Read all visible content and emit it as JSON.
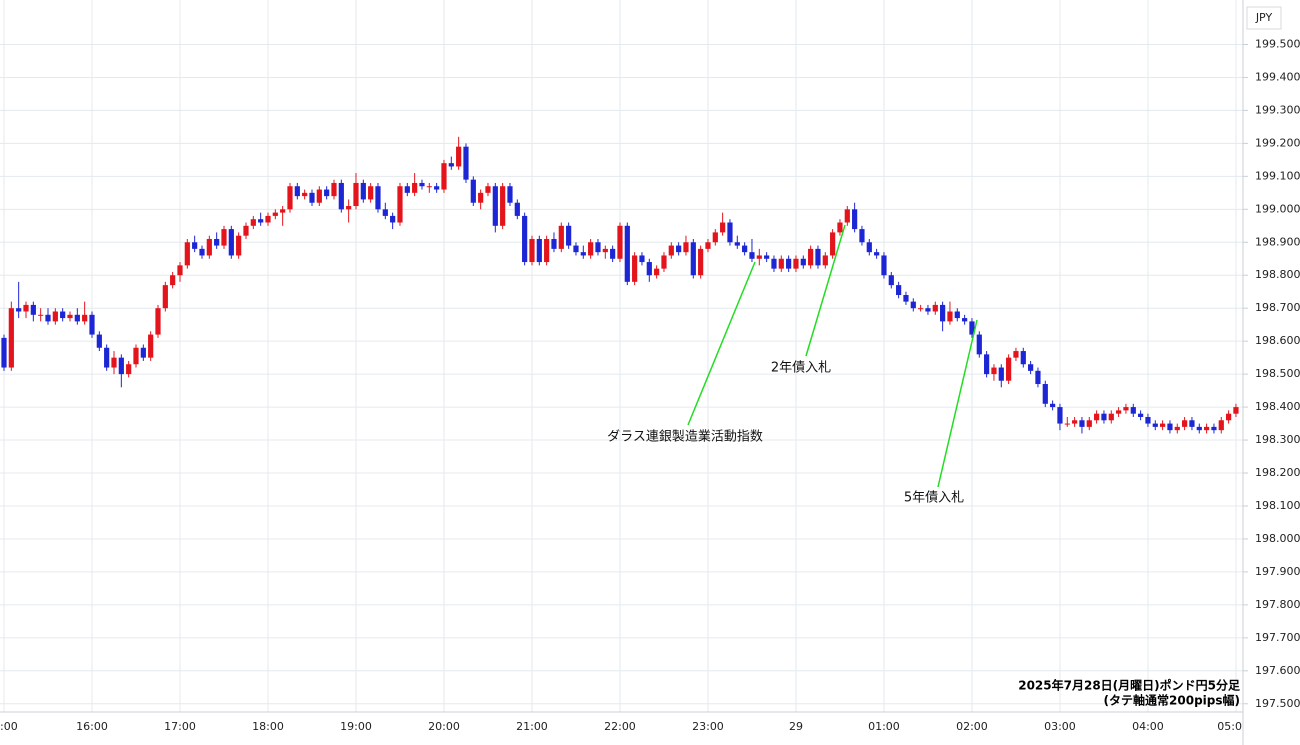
{
  "chart_data": {
    "type": "candlestick",
    "currency_label": "JPY",
    "up_color": "#e3141c",
    "down_color": "#1c26d4",
    "grid": true,
    "ylim": [
      197.475,
      199.635
    ],
    "yticks": [
      {
        "value": 197.5,
        "label": "197.500"
      },
      {
        "value": 197.6,
        "label": "197.600"
      },
      {
        "value": 197.7,
        "label": "197.700"
      },
      {
        "value": 197.8,
        "label": "197.800"
      },
      {
        "value": 197.9,
        "label": "197.900"
      },
      {
        "value": 198.0,
        "label": "198.000"
      },
      {
        "value": 198.1,
        "label": "198.100"
      },
      {
        "value": 198.2,
        "label": "198.200"
      },
      {
        "value": 198.3,
        "label": "198.300"
      },
      {
        "value": 198.4,
        "label": "198.400"
      },
      {
        "value": 198.5,
        "label": "198.500"
      },
      {
        "value": 198.6,
        "label": "198.600"
      },
      {
        "value": 198.7,
        "label": "198.700"
      },
      {
        "value": 198.8,
        "label": "198.800"
      },
      {
        "value": 198.9,
        "label": "198.900"
      },
      {
        "value": 199.0,
        "label": "199.000"
      },
      {
        "value": 199.1,
        "label": "199.100"
      },
      {
        "value": 199.2,
        "label": "199.200"
      },
      {
        "value": 199.3,
        "label": "199.300"
      },
      {
        "value": 199.4,
        "label": "199.400"
      },
      {
        "value": 199.5,
        "label": "199.500"
      }
    ],
    "categories": [
      ":00",
      null,
      null,
      null,
      null,
      null,
      null,
      null,
      null,
      null,
      null,
      null,
      "16:00",
      null,
      null,
      null,
      null,
      null,
      null,
      null,
      null,
      null,
      null,
      null,
      "17:00",
      null,
      null,
      null,
      null,
      null,
      null,
      null,
      null,
      null,
      null,
      null,
      "18:00",
      null,
      null,
      null,
      null,
      null,
      null,
      null,
      null,
      null,
      null,
      null,
      "19:00",
      null,
      null,
      null,
      null,
      null,
      null,
      null,
      null,
      null,
      null,
      null,
      "20:00",
      null,
      null,
      null,
      null,
      null,
      null,
      null,
      null,
      null,
      null,
      null,
      "21:00",
      null,
      null,
      null,
      null,
      null,
      null,
      null,
      null,
      null,
      null,
      null,
      "22:00",
      null,
      null,
      null,
      null,
      null,
      null,
      null,
      null,
      null,
      null,
      null,
      "23:00",
      null,
      null,
      null,
      null,
      null,
      null,
      null,
      null,
      null,
      null,
      null,
      "29",
      null,
      null,
      null,
      null,
      null,
      null,
      null,
      null,
      null,
      null,
      null,
      "01:00",
      null,
      null,
      null,
      null,
      null,
      null,
      null,
      null,
      null,
      null,
      null,
      "02:00",
      null,
      null,
      null,
      null,
      null,
      null,
      null,
      null,
      null,
      null,
      null,
      "03:00",
      null,
      null,
      null,
      null,
      null,
      null,
      null,
      null,
      null,
      null,
      null,
      "04:00",
      null,
      null,
      null,
      null,
      null,
      null,
      null,
      null,
      null,
      null,
      null,
      "05:0"
    ],
    "values": [
      [
        198.61,
        198.62,
        198.51,
        198.52
      ],
      [
        198.52,
        198.72,
        198.51,
        198.7
      ],
      [
        198.7,
        198.78,
        198.67,
        198.69
      ],
      [
        198.69,
        198.72,
        198.67,
        198.71
      ],
      [
        198.71,
        198.72,
        198.66,
        198.68
      ],
      [
        198.68,
        198.7,
        198.66,
        198.68
      ],
      [
        198.68,
        198.7,
        198.65,
        198.66
      ],
      [
        198.66,
        198.7,
        198.65,
        198.69
      ],
      [
        198.69,
        198.7,
        198.66,
        198.67
      ],
      [
        198.67,
        198.69,
        198.66,
        198.68
      ],
      [
        198.68,
        198.7,
        198.65,
        198.66
      ],
      [
        198.66,
        198.72,
        198.65,
        198.68
      ],
      [
        198.68,
        198.69,
        198.61,
        198.62
      ],
      [
        198.62,
        198.63,
        198.57,
        198.58
      ],
      [
        198.58,
        198.59,
        198.51,
        198.52
      ],
      [
        198.52,
        198.57,
        198.5,
        198.55
      ],
      [
        198.55,
        198.56,
        198.46,
        198.5
      ],
      [
        198.5,
        198.54,
        198.49,
        198.53
      ],
      [
        198.53,
        198.59,
        198.52,
        198.58
      ],
      [
        198.58,
        198.59,
        198.54,
        198.55
      ],
      [
        198.55,
        198.63,
        198.54,
        198.62
      ],
      [
        198.62,
        198.71,
        198.61,
        198.7
      ],
      [
        198.7,
        198.78,
        198.69,
        198.77
      ],
      [
        198.77,
        198.81,
        198.76,
        198.8
      ],
      [
        198.8,
        198.84,
        198.78,
        198.83
      ],
      [
        198.83,
        198.91,
        198.82,
        198.9
      ],
      [
        198.9,
        198.92,
        198.87,
        198.88
      ],
      [
        198.88,
        198.89,
        198.85,
        198.86
      ],
      [
        198.86,
        198.92,
        198.85,
        198.91
      ],
      [
        198.91,
        198.93,
        198.88,
        198.89
      ],
      [
        198.89,
        198.95,
        198.88,
        198.94
      ],
      [
        198.94,
        198.95,
        198.85,
        198.86
      ],
      [
        198.86,
        198.93,
        198.85,
        198.92
      ],
      [
        198.92,
        198.96,
        198.91,
        198.95
      ],
      [
        198.95,
        198.98,
        198.94,
        198.97
      ],
      [
        198.97,
        198.99,
        198.95,
        198.96
      ],
      [
        198.96,
        198.99,
        198.95,
        198.98
      ],
      [
        198.98,
        199.0,
        198.97,
        198.99
      ],
      [
        198.99,
        199.01,
        198.95,
        199.0
      ],
      [
        199.0,
        199.08,
        198.99,
        199.07
      ],
      [
        199.07,
        199.08,
        199.03,
        199.04
      ],
      [
        199.04,
        199.06,
        199.03,
        199.05
      ],
      [
        199.05,
        199.06,
        199.01,
        199.02
      ],
      [
        199.02,
        199.07,
        199.01,
        199.06
      ],
      [
        199.06,
        199.07,
        199.03,
        199.04
      ],
      [
        199.04,
        199.09,
        199.03,
        199.08
      ],
      [
        199.08,
        199.09,
        198.99,
        199.0
      ],
      [
        199.0,
        199.03,
        198.96,
        199.01
      ],
      [
        199.01,
        199.11,
        199.0,
        199.08
      ],
      [
        199.08,
        199.09,
        199.02,
        199.03
      ],
      [
        199.03,
        199.08,
        199.02,
        199.07
      ],
      [
        199.07,
        199.08,
        198.99,
        199.0
      ],
      [
        199.0,
        199.02,
        198.97,
        198.98
      ],
      [
        198.98,
        198.99,
        198.94,
        198.96
      ],
      [
        198.96,
        199.08,
        198.95,
        199.07
      ],
      [
        199.07,
        199.08,
        199.04,
        199.05
      ],
      [
        199.05,
        199.11,
        199.04,
        199.08
      ],
      [
        199.08,
        199.09,
        199.06,
        199.07
      ],
      [
        199.07,
        199.08,
        199.05,
        199.07
      ],
      [
        199.07,
        199.08,
        199.05,
        199.06
      ],
      [
        199.06,
        199.15,
        199.05,
        199.14
      ],
      [
        199.14,
        199.16,
        199.12,
        199.13
      ],
      [
        199.13,
        199.22,
        199.12,
        199.19
      ],
      [
        199.19,
        199.2,
        199.08,
        199.09
      ],
      [
        199.09,
        199.1,
        199.01,
        199.02
      ],
      [
        199.02,
        199.06,
        199.0,
        199.05
      ],
      [
        199.05,
        199.08,
        199.04,
        199.07
      ],
      [
        199.07,
        199.08,
        198.93,
        198.95
      ],
      [
        198.95,
        199.08,
        198.94,
        199.07
      ],
      [
        199.07,
        199.08,
        199.01,
        199.02
      ],
      [
        199.02,
        199.03,
        198.97,
        198.98
      ],
      [
        198.98,
        198.99,
        198.83,
        198.84
      ],
      [
        198.84,
        198.92,
        198.83,
        198.91
      ],
      [
        198.91,
        198.92,
        198.83,
        198.84
      ],
      [
        198.84,
        198.92,
        198.83,
        198.91
      ],
      [
        198.91,
        198.93,
        198.87,
        198.88
      ],
      [
        198.88,
        198.96,
        198.87,
        198.95
      ],
      [
        198.95,
        198.96,
        198.88,
        198.89
      ],
      [
        198.89,
        198.9,
        198.86,
        198.87
      ],
      [
        198.87,
        198.89,
        198.85,
        198.86
      ],
      [
        198.86,
        198.91,
        198.85,
        198.9
      ],
      [
        198.9,
        198.91,
        198.86,
        198.87
      ],
      [
        198.87,
        198.89,
        198.85,
        198.88
      ],
      [
        198.88,
        198.89,
        198.84,
        198.85
      ],
      [
        198.85,
        198.96,
        198.84,
        198.95
      ],
      [
        198.95,
        198.96,
        198.77,
        198.78
      ],
      [
        198.78,
        198.87,
        198.77,
        198.86
      ],
      [
        198.86,
        198.87,
        198.83,
        198.84
      ],
      [
        198.84,
        198.85,
        198.78,
        198.8
      ],
      [
        198.8,
        198.83,
        198.79,
        198.82
      ],
      [
        198.82,
        198.87,
        198.81,
        198.86
      ],
      [
        198.86,
        198.9,
        198.85,
        198.89
      ],
      [
        198.89,
        198.9,
        198.86,
        198.87
      ],
      [
        198.87,
        198.92,
        198.86,
        198.9
      ],
      [
        198.9,
        198.91,
        198.79,
        198.8
      ],
      [
        198.8,
        198.89,
        198.79,
        198.88
      ],
      [
        198.88,
        198.91,
        198.87,
        198.9
      ],
      [
        198.9,
        198.94,
        198.89,
        198.93
      ],
      [
        198.93,
        198.99,
        198.92,
        198.96
      ],
      [
        198.96,
        198.97,
        198.89,
        198.9
      ],
      [
        198.9,
        198.92,
        198.88,
        198.89
      ],
      [
        198.89,
        198.9,
        198.86,
        198.87
      ],
      [
        198.87,
        198.91,
        198.84,
        198.85
      ],
      [
        198.85,
        198.88,
        198.83,
        198.86
      ],
      [
        198.86,
        198.87,
        198.84,
        198.85
      ],
      [
        198.85,
        198.86,
        198.81,
        198.82
      ],
      [
        198.82,
        198.86,
        198.81,
        198.85
      ],
      [
        198.85,
        198.86,
        198.81,
        198.82
      ],
      [
        198.82,
        198.86,
        198.81,
        198.85
      ],
      [
        198.85,
        198.86,
        198.82,
        198.83
      ],
      [
        198.83,
        198.89,
        198.82,
        198.88
      ],
      [
        198.88,
        198.89,
        198.82,
        198.83
      ],
      [
        198.83,
        198.87,
        198.82,
        198.86
      ],
      [
        198.86,
        198.94,
        198.85,
        198.93
      ],
      [
        198.93,
        198.97,
        198.92,
        198.96
      ],
      [
        198.96,
        199.01,
        198.95,
        199.0
      ],
      [
        199.0,
        199.02,
        198.93,
        198.94
      ],
      [
        198.94,
        198.95,
        198.89,
        198.9
      ],
      [
        198.9,
        198.91,
        198.86,
        198.87
      ],
      [
        198.87,
        198.88,
        198.85,
        198.86
      ],
      [
        198.86,
        198.87,
        198.79,
        198.8
      ],
      [
        198.8,
        198.81,
        198.76,
        198.77
      ],
      [
        198.77,
        198.78,
        198.73,
        198.74
      ],
      [
        198.74,
        198.75,
        198.71,
        198.72
      ],
      [
        198.72,
        198.73,
        198.69,
        198.7
      ],
      [
        198.7,
        198.71,
        198.69,
        198.7
      ],
      [
        198.7,
        198.71,
        198.68,
        198.69
      ],
      [
        198.69,
        198.72,
        198.68,
        198.71
      ],
      [
        198.71,
        198.72,
        198.63,
        198.66
      ],
      [
        198.66,
        198.72,
        198.65,
        198.69
      ],
      [
        198.69,
        198.7,
        198.66,
        198.67
      ],
      [
        198.67,
        198.68,
        198.65,
        198.66
      ],
      [
        198.66,
        198.67,
        198.61,
        198.62
      ],
      [
        198.62,
        198.63,
        198.55,
        198.56
      ],
      [
        198.56,
        198.57,
        198.49,
        198.5
      ],
      [
        198.5,
        198.53,
        198.48,
        198.52
      ],
      [
        198.52,
        198.53,
        198.46,
        198.48
      ],
      [
        198.48,
        198.56,
        198.47,
        198.55
      ],
      [
        198.55,
        198.58,
        198.54,
        198.57
      ],
      [
        198.57,
        198.58,
        198.52,
        198.53
      ],
      [
        198.53,
        198.54,
        198.5,
        198.51
      ],
      [
        198.51,
        198.52,
        198.46,
        198.47
      ],
      [
        198.47,
        198.48,
        198.4,
        198.41
      ],
      [
        198.41,
        198.42,
        198.39,
        198.4
      ],
      [
        198.4,
        198.41,
        198.33,
        198.35
      ],
      [
        198.35,
        198.37,
        198.34,
        198.35
      ],
      [
        198.35,
        198.37,
        198.34,
        198.36
      ],
      [
        198.36,
        198.37,
        198.32,
        198.34
      ],
      [
        198.34,
        198.37,
        198.33,
        198.36
      ],
      [
        198.36,
        198.39,
        198.35,
        198.38
      ],
      [
        198.38,
        198.39,
        198.35,
        198.36
      ],
      [
        198.36,
        198.39,
        198.35,
        198.38
      ],
      [
        198.38,
        198.4,
        198.37,
        198.39
      ],
      [
        198.39,
        198.41,
        198.38,
        198.4
      ],
      [
        198.4,
        198.41,
        198.37,
        198.38
      ],
      [
        198.38,
        198.39,
        198.36,
        198.37
      ],
      [
        198.37,
        198.38,
        198.34,
        198.35
      ],
      [
        198.35,
        198.36,
        198.33,
        198.34
      ],
      [
        198.34,
        198.36,
        198.33,
        198.35
      ],
      [
        198.35,
        198.36,
        198.32,
        198.33
      ],
      [
        198.33,
        198.35,
        198.32,
        198.34
      ],
      [
        198.34,
        198.37,
        198.33,
        198.36
      ],
      [
        198.36,
        198.37,
        198.33,
        198.34
      ],
      [
        198.34,
        198.35,
        198.32,
        198.33
      ],
      [
        198.33,
        198.35,
        198.32,
        198.34
      ],
      [
        198.34,
        198.35,
        198.32,
        198.33
      ],
      [
        198.33,
        198.37,
        198.32,
        198.36
      ],
      [
        198.36,
        198.39,
        198.35,
        198.38
      ],
      [
        198.38,
        198.41,
        198.37,
        198.4
      ]
    ],
    "annotations": [
      "ダラス連銀製造業活動指数",
      "2年債入札",
      "5年債入札"
    ],
    "footer": [
      "2025年7月28日(月曜日)ポンド円5分足",
      "(タテ軸通常200pips幅)"
    ]
  }
}
